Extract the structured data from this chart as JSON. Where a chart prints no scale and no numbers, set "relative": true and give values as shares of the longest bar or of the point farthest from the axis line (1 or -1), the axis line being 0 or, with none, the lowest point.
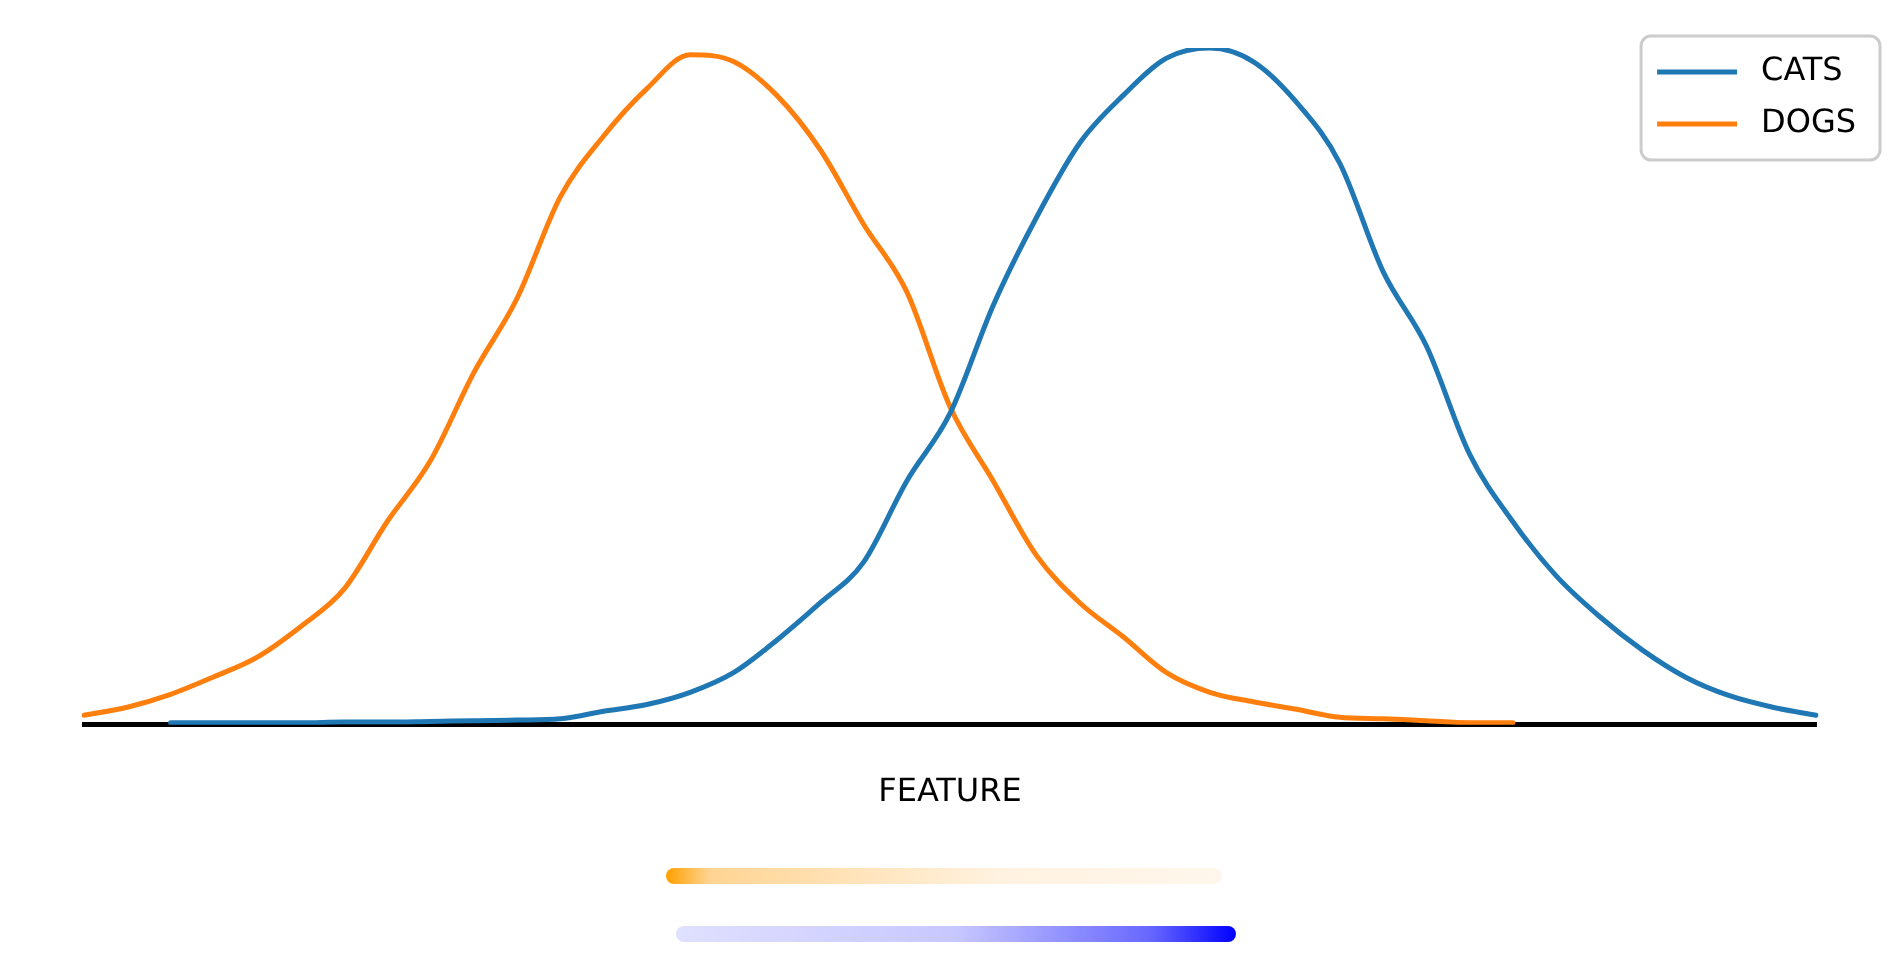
{
  "chart_data": {
    "type": "line",
    "relative": true,
    "xlabel": "FEATURE",
    "legend": "top right",
    "grid": false,
    "marker": "none",
    "line_style": "solid",
    "categories": [
      null,
      null,
      null,
      null,
      null,
      null,
      null,
      null,
      null,
      null,
      null,
      null,
      null,
      null,
      null,
      null,
      null,
      null,
      null,
      null,
      null,
      null,
      null,
      null,
      null,
      null,
      null,
      null,
      null,
      null,
      null,
      null,
      null,
      null,
      null,
      null,
      null,
      null,
      null,
      null,
      null
    ],
    "series": [
      {
        "name": "CATS",
        "color": "#1f77b4",
        "values": [
          null,
          null,
          0.003,
          0.003,
          0.003,
          0.003,
          0.004,
          0.004,
          0.005,
          0.006,
          0.007,
          0.009,
          0.02,
          0.03,
          0.048,
          0.077,
          0.125,
          0.18,
          0.24,
          0.36,
          0.46,
          0.62,
          0.75,
          0.86,
          0.93,
          0.985,
          1,
          0.98,
          0.92,
          0.83,
          0.67,
          0.56,
          0.4,
          0.3,
          0.22,
          0.16,
          0.11,
          0.07,
          0.043,
          0.026,
          0.014
        ]
      },
      {
        "name": "DOGS",
        "color": "#ff7f0e",
        "values": [
          0.014,
          0.026,
          0.045,
          0.071,
          0.1,
          0.145,
          0.2,
          0.3,
          0.39,
          0.52,
          0.63,
          0.78,
          0.87,
          0.94,
          0.99,
          0.98,
          0.93,
          0.85,
          0.74,
          0.64,
          0.47,
          0.36,
          0.25,
          0.18,
          0.13,
          0.077,
          0.048,
          0.034,
          0.023,
          0.011,
          0.009,
          0.006,
          0.003,
          0.003,
          null,
          null,
          null,
          null,
          null,
          null,
          null
        ]
      }
    ]
  }
}
